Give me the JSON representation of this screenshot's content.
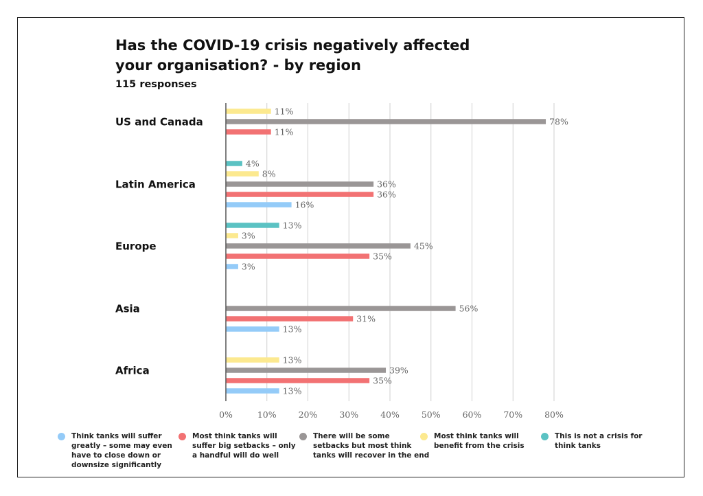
{
  "chart_data": {
    "type": "bar",
    "orientation": "horizontal",
    "title": "Has the COVID-19 crisis negatively affected your organisation? - by region",
    "subtitle": "115 responses",
    "categories": [
      "US and Canada",
      "Latin America",
      "Europe",
      "Asia",
      "Africa"
    ],
    "xlim": [
      0,
      80
    ],
    "xticks": [
      0,
      10,
      20,
      30,
      40,
      50,
      60,
      70,
      80
    ],
    "xtick_labels": [
      "0%",
      "10%",
      "20%",
      "30%",
      "40%",
      "50%",
      "60%",
      "70%",
      "80%"
    ],
    "grid": true,
    "legend_position": "bottom",
    "series": [
      {
        "name": "This is not a crisis for think tanks",
        "color": "#5BC2C3",
        "values": [
          null,
          4,
          13,
          null,
          null
        ],
        "labels": [
          null,
          "4%",
          "13%",
          null,
          null
        ]
      },
      {
        "name": "Most think tanks will benefit from the crisis",
        "color": "#FCE98F",
        "values": [
          11,
          8,
          3,
          null,
          13
        ],
        "labels": [
          "11%",
          "8%",
          "3%",
          null,
          "13%"
        ]
      },
      {
        "name": "There will be some setbacks but most think tanks will recover in the end",
        "color": "#9A9696",
        "values": [
          78,
          36,
          45,
          56,
          39
        ],
        "labels": [
          "78%",
          "36%",
          "45%",
          "56%",
          "39%"
        ]
      },
      {
        "name": "Most think tanks will suffer big setbacks – only a handful will do well",
        "color": "#F27273",
        "values": [
          11,
          36,
          35,
          31,
          35
        ],
        "labels": [
          "11%",
          "36%",
          "35%",
          "31%",
          "35%"
        ]
      },
      {
        "name": "Think tanks will suffer greatly – some may even have to close down or downsize significantly",
        "color": "#94CBF8",
        "values": [
          null,
          16,
          3,
          13,
          13
        ],
        "labels": [
          null,
          "16%",
          "3%",
          "13%",
          "13%"
        ]
      }
    ]
  },
  "legend": [
    {
      "lines": [
        "Think tanks will suffer",
        "greatly – some may even",
        "have to close down or",
        "downsize significantly"
      ],
      "color": "#94CBF8"
    },
    {
      "lines": [
        "Most think tanks will",
        "suffer big setbacks – only",
        "a handful will do well"
      ],
      "color": "#F27273"
    },
    {
      "lines": [
        "There will be some",
        "setbacks but most think",
        "tanks will recover in the end"
      ],
      "color": "#9A9696"
    },
    {
      "lines": [
        "Most think tanks will",
        "benefit from the crisis"
      ],
      "color": "#FCE98F"
    },
    {
      "lines": [
        "This is not a crisis for",
        "think tanks"
      ],
      "color": "#5BC2C3"
    }
  ]
}
